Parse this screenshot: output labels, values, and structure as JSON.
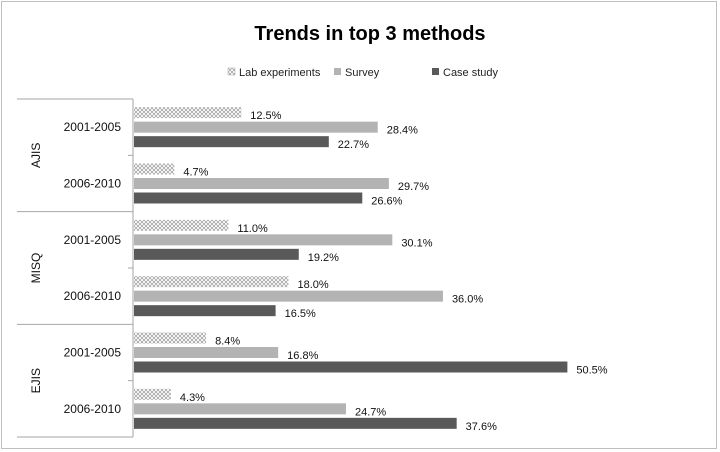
{
  "chart_data": {
    "type": "bar",
    "orientation": "horizontal",
    "title": "Trends in top 3 methods",
    "legend_position": "top",
    "groups": [
      {
        "name": "AJIS",
        "periods": [
          "2001-2005",
          "2006-2010"
        ]
      },
      {
        "name": "MISQ",
        "periods": [
          "2001-2005",
          "2006-2010"
        ]
      },
      {
        "name": "EJIS",
        "periods": [
          "2001-2005",
          "2006-2010"
        ]
      }
    ],
    "series": [
      {
        "name": "Lab experiments",
        "color": "#e6e6e6",
        "pattern": "crosshatch",
        "values": [
          12.5,
          4.7,
          11.0,
          18.0,
          8.4,
          4.3
        ],
        "labels": [
          "12.5%",
          "4.7%",
          "11.0%",
          "18.0%",
          "8.4%",
          "4.3%"
        ]
      },
      {
        "name": "Survey",
        "color": "#b3b3b3",
        "values": [
          28.4,
          29.7,
          30.1,
          36.0,
          16.8,
          24.7
        ],
        "labels": [
          "28.4%",
          "29.7%",
          "30.1%",
          "36.0%",
          "16.8%",
          "24.7%"
        ]
      },
      {
        "name": "Case study",
        "color": "#595959",
        "values": [
          22.7,
          26.6,
          19.2,
          16.5,
          50.5,
          37.6
        ],
        "labels": [
          "22.7%",
          "26.6%",
          "19.2%",
          "16.5%",
          "50.5%",
          "37.6%"
        ]
      }
    ],
    "xlim": [
      0,
      55
    ],
    "grid": false
  }
}
